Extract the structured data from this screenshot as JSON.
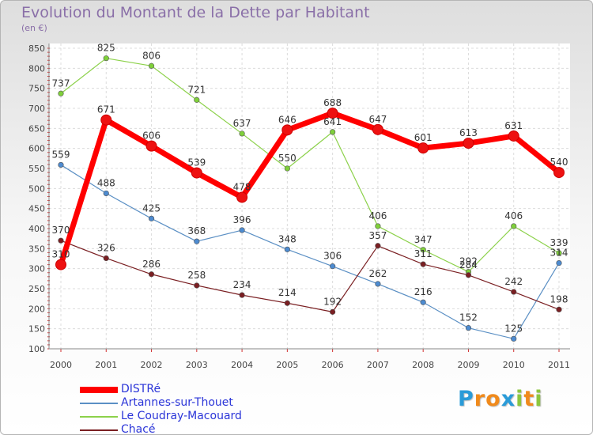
{
  "chart_data": {
    "type": "line",
    "title": "Evolution du Montant de la Dette par Habitant",
    "subtitle": "(en €)",
    "xlabel": "",
    "ylabel": "",
    "categories": [
      "2000",
      "2001",
      "2002",
      "2003",
      "2004",
      "2005",
      "2006",
      "2007",
      "2008",
      "2009",
      "2010",
      "2011"
    ],
    "ylim": [
      100,
      850
    ],
    "yticks": [
      100,
      150,
      200,
      250,
      300,
      350,
      400,
      450,
      500,
      550,
      600,
      650,
      700,
      750,
      800,
      850
    ],
    "grid": true,
    "legend_position": "bottom-left",
    "series": [
      {
        "name": "DISTRé",
        "color": "#ff0000",
        "values": [
          310,
          671,
          606,
          539,
          478,
          646,
          688,
          647,
          601,
          613,
          631,
          540
        ]
      },
      {
        "name": "Artannes-sur-Thouet",
        "color": "#5a8fc4",
        "values": [
          559,
          488,
          425,
          368,
          396,
          348,
          306,
          262,
          216,
          152,
          125,
          314
        ]
      },
      {
        "name": "Le Coudray-Macouard",
        "color": "#8cd14a",
        "values": [
          737,
          825,
          806,
          721,
          637,
          550,
          641,
          406,
          347,
          292,
          406,
          339
        ]
      },
      {
        "name": "Chacé",
        "color": "#7a1f22",
        "values": [
          370,
          326,
          286,
          258,
          234,
          214,
          192,
          357,
          311,
          284,
          242,
          198
        ]
      }
    ],
    "data_labels": [
      [
        "310",
        "671",
        "606",
        "539",
        "478",
        "646",
        "688",
        "647",
        "601",
        "613",
        "631",
        "540"
      ],
      [
        "559",
        "488",
        "425",
        "368",
        "396",
        "348",
        "306",
        "262",
        "216",
        "152",
        "125",
        "314"
      ],
      [
        "737",
        "825",
        "806",
        "721",
        "637",
        "550",
        "641",
        "406",
        "347",
        "292",
        "406",
        "339"
      ],
      [
        "370",
        "326",
        "286",
        "258",
        "234",
        "214",
        "192",
        "357",
        "311",
        "284",
        "242",
        "198"
      ]
    ]
  },
  "logo": {
    "letters": [
      "P",
      "r",
      "o",
      "x",
      "i",
      "t",
      "i"
    ],
    "colors": [
      "#2a9bd8",
      "#f08a1c",
      "#f08a1c",
      "#2a9bd8",
      "#8cc63f",
      "#f08a1c",
      "#8cc63f"
    ]
  }
}
